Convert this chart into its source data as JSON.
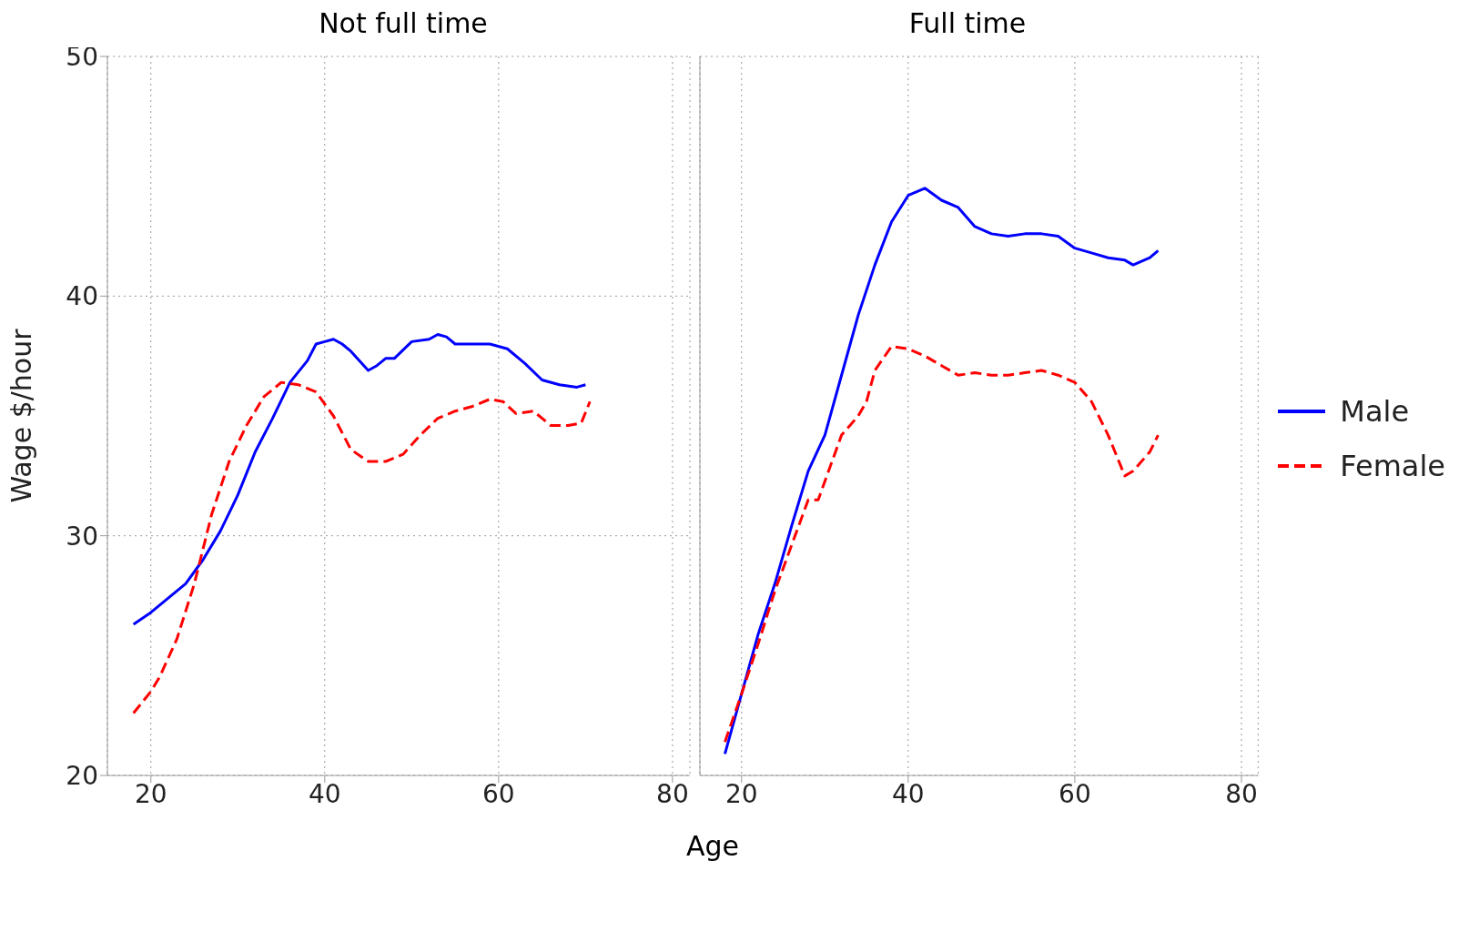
{
  "chart_data": [
    {
      "type": "line",
      "title": "Not full time",
      "xlabel": "Age",
      "ylabel": "Wage $/hour",
      "xlim": [
        15,
        82
      ],
      "xticks": [
        20,
        40,
        60,
        80
      ],
      "ylim": [
        20,
        50
      ],
      "yticks": [
        20,
        30,
        40,
        50
      ],
      "grid": true,
      "legend": false,
      "series": [
        {
          "color": "#0000ff",
          "line_style": "solid",
          "x": [
            18,
            20,
            22,
            24,
            26,
            28,
            30,
            32,
            34,
            36,
            38,
            39,
            40,
            41,
            42,
            43,
            44,
            45,
            46,
            47,
            48,
            50,
            52,
            53,
            54,
            55,
            57,
            59,
            61,
            63,
            65,
            67,
            69,
            70
          ],
          "values": [
            26.3,
            26.8,
            27.4,
            28.0,
            29.0,
            30.2,
            31.7,
            33.5,
            34.9,
            36.4,
            37.3,
            38.0,
            38.1,
            38.2,
            38.0,
            37.7,
            37.3,
            36.9,
            37.1,
            37.4,
            37.4,
            38.1,
            38.2,
            38.4,
            38.3,
            38.0,
            38.0,
            38.0,
            37.8,
            37.2,
            36.5,
            36.3,
            36.2,
            36.3
          ]
        },
        {
          "color": "#ff0000",
          "line_style": "dashed",
          "x": [
            18,
            20,
            21,
            23,
            25,
            27,
            29,
            31,
            33,
            35,
            37,
            39,
            41,
            43,
            45,
            47,
            49,
            51,
            53,
            55,
            57,
            59,
            60.5,
            62,
            64,
            66,
            68,
            69.5,
            70.5
          ],
          "values": [
            22.6,
            23.5,
            24.1,
            25.7,
            28.0,
            30.9,
            33.1,
            34.6,
            35.8,
            36.4,
            36.3,
            36.0,
            35.0,
            33.6,
            33.1,
            33.1,
            33.4,
            34.2,
            34.9,
            35.2,
            35.4,
            35.7,
            35.6,
            35.1,
            35.2,
            34.6,
            34.6,
            34.7,
            35.6
          ]
        }
      ]
    },
    {
      "type": "line",
      "title": "Full time",
      "xlim": [
        15,
        82
      ],
      "xticks": [
        20,
        40,
        60,
        80
      ],
      "ylim": [
        20,
        50
      ],
      "yticks": [
        20,
        30,
        40,
        50
      ],
      "grid": true,
      "legend": "right",
      "tick_labels": "x",
      "series": [
        {
          "name": "Male",
          "color": "#0000ff",
          "line_style": "solid",
          "x": [
            18,
            20,
            22,
            24,
            26,
            28,
            30,
            32,
            34,
            36,
            38,
            40,
            42,
            44,
            46,
            48,
            50,
            52,
            54,
            56,
            58,
            60,
            62,
            64,
            66,
            67,
            69,
            70
          ],
          "values": [
            20.9,
            23.4,
            25.9,
            28.0,
            30.4,
            32.7,
            34.2,
            36.7,
            39.2,
            41.3,
            43.1,
            44.2,
            44.5,
            44.0,
            43.7,
            42.9,
            42.6,
            42.5,
            42.6,
            42.6,
            42.5,
            42.0,
            41.8,
            41.6,
            41.5,
            41.3,
            41.6,
            41.9
          ]
        },
        {
          "name": "Female",
          "color": "#ff0000",
          "line_style": "dashed",
          "x": [
            18,
            20,
            22,
            24,
            26,
            28,
            29.2,
            32,
            34,
            35,
            36,
            38,
            40,
            42,
            44,
            46,
            48,
            50,
            52,
            54,
            56,
            58,
            60,
            62,
            64,
            66,
            67,
            69,
            70
          ],
          "values": [
            21.4,
            23.4,
            25.5,
            27.7,
            29.6,
            31.5,
            31.5,
            34.2,
            35.0,
            35.6,
            36.9,
            37.9,
            37.8,
            37.5,
            37.1,
            36.7,
            36.8,
            36.7,
            36.7,
            36.8,
            36.9,
            36.7,
            36.4,
            35.6,
            34.2,
            32.5,
            32.7,
            33.5,
            34.2
          ]
        }
      ]
    }
  ]
}
